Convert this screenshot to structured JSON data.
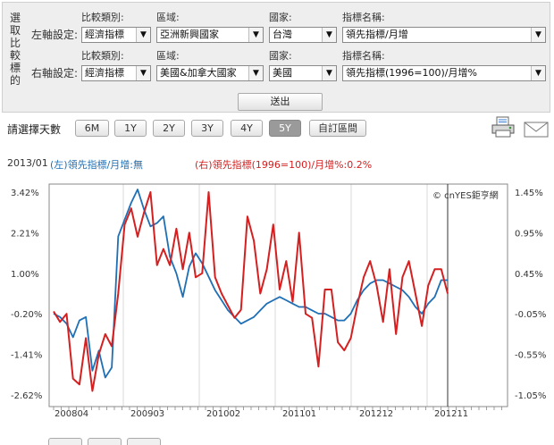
{
  "form": {
    "side_label": "選取比較標的",
    "left_axis_label": "左軸設定:",
    "right_axis_label": "右軸設定:",
    "headers": {
      "type": "比較類別:",
      "region": "區域:",
      "country": "國家:",
      "indicator": "指標名稱:"
    },
    "left": {
      "type": "經濟指標",
      "region": "亞洲新興國家",
      "country": "台灣",
      "indicator": "領先指標/月增"
    },
    "right": {
      "type": "經濟指標",
      "region": "美國&加拿大國家",
      "country": "美國",
      "indicator": "領先指標(1996=100)/月增%"
    },
    "submit_label": "送出"
  },
  "range": {
    "label": "請選擇天數",
    "buttons": [
      "6M",
      "1Y",
      "2Y",
      "3Y",
      "4Y",
      "5Y",
      "自訂區間"
    ],
    "active": "5Y"
  },
  "icons": {
    "print": "printer-icon",
    "mail": "mail-icon"
  },
  "legend": {
    "date": "2013/01",
    "left_text": "(左)領先指標/月增:無",
    "right_text": "(右)領先指標(1996=100)/月增%:0.2%",
    "left_color": "#1f6fb5",
    "right_color": "#d42020"
  },
  "chart_data": {
    "type": "line",
    "watermark": "© cnYES鉅亨網",
    "x_labels": [
      "200804",
      "200903",
      "201002",
      "201101",
      "201212",
      "201211"
    ],
    "left_axis": {
      "ticks": [
        "3.42%",
        "2.21%",
        "1.00%",
        "-0.20%",
        "-1.41%",
        "-2.62%"
      ],
      "ylim": [
        -2.62,
        3.42
      ]
    },
    "right_axis": {
      "ticks": [
        "1.45%",
        "0.95%",
        "0.45%",
        "-0.05%",
        "-0.55%",
        "-1.05%"
      ],
      "ylim": [
        -1.05,
        1.45
      ]
    },
    "series": [
      {
        "axis": "left",
        "color": "#1f6fb5",
        "values": [
          -0.2,
          -0.3,
          -0.5,
          -0.9,
          -0.4,
          -0.3,
          -1.9,
          -1.3,
          -2.1,
          -1.8,
          2.1,
          2.6,
          3.1,
          3.5,
          2.9,
          2.4,
          2.5,
          2.7,
          1.5,
          1.0,
          0.3,
          1.2,
          1.6,
          1.3,
          0.9,
          0.5,
          0.2,
          -0.1,
          -0.3,
          -0.5,
          -0.4,
          -0.3,
          -0.1,
          0.1,
          0.2,
          0.3,
          0.2,
          0.1,
          0.0,
          0.0,
          -0.1,
          -0.2,
          -0.2,
          -0.3,
          -0.4,
          -0.4,
          -0.2,
          0.2,
          0.5,
          0.7,
          0.8,
          0.8,
          0.7,
          0.6,
          0.5,
          0.3,
          0.0,
          -0.2,
          0.1,
          0.3,
          0.8,
          0.8
        ]
      },
      {
        "axis": "right",
        "color": "#d42020",
        "values": [
          -0.02,
          -0.15,
          -0.05,
          -0.85,
          -0.92,
          -0.35,
          -1.0,
          -0.55,
          -0.3,
          -0.45,
          0.2,
          1.05,
          1.25,
          0.9,
          1.2,
          1.45,
          0.55,
          0.75,
          0.55,
          1.0,
          0.5,
          0.95,
          0.4,
          0.45,
          1.45,
          0.4,
          0.2,
          0.05,
          -0.1,
          0.0,
          1.15,
          0.85,
          0.2,
          0.5,
          1.05,
          0.25,
          0.6,
          0.1,
          0.95,
          -0.05,
          -0.1,
          -0.7,
          0.25,
          0.25,
          -0.4,
          -0.5,
          -0.35,
          0.05,
          0.4,
          0.6,
          0.3,
          -0.15,
          0.5,
          -0.3,
          0.4,
          0.6,
          0.2,
          -0.2,
          0.3,
          0.5,
          0.5,
          0.2
        ]
      }
    ]
  }
}
